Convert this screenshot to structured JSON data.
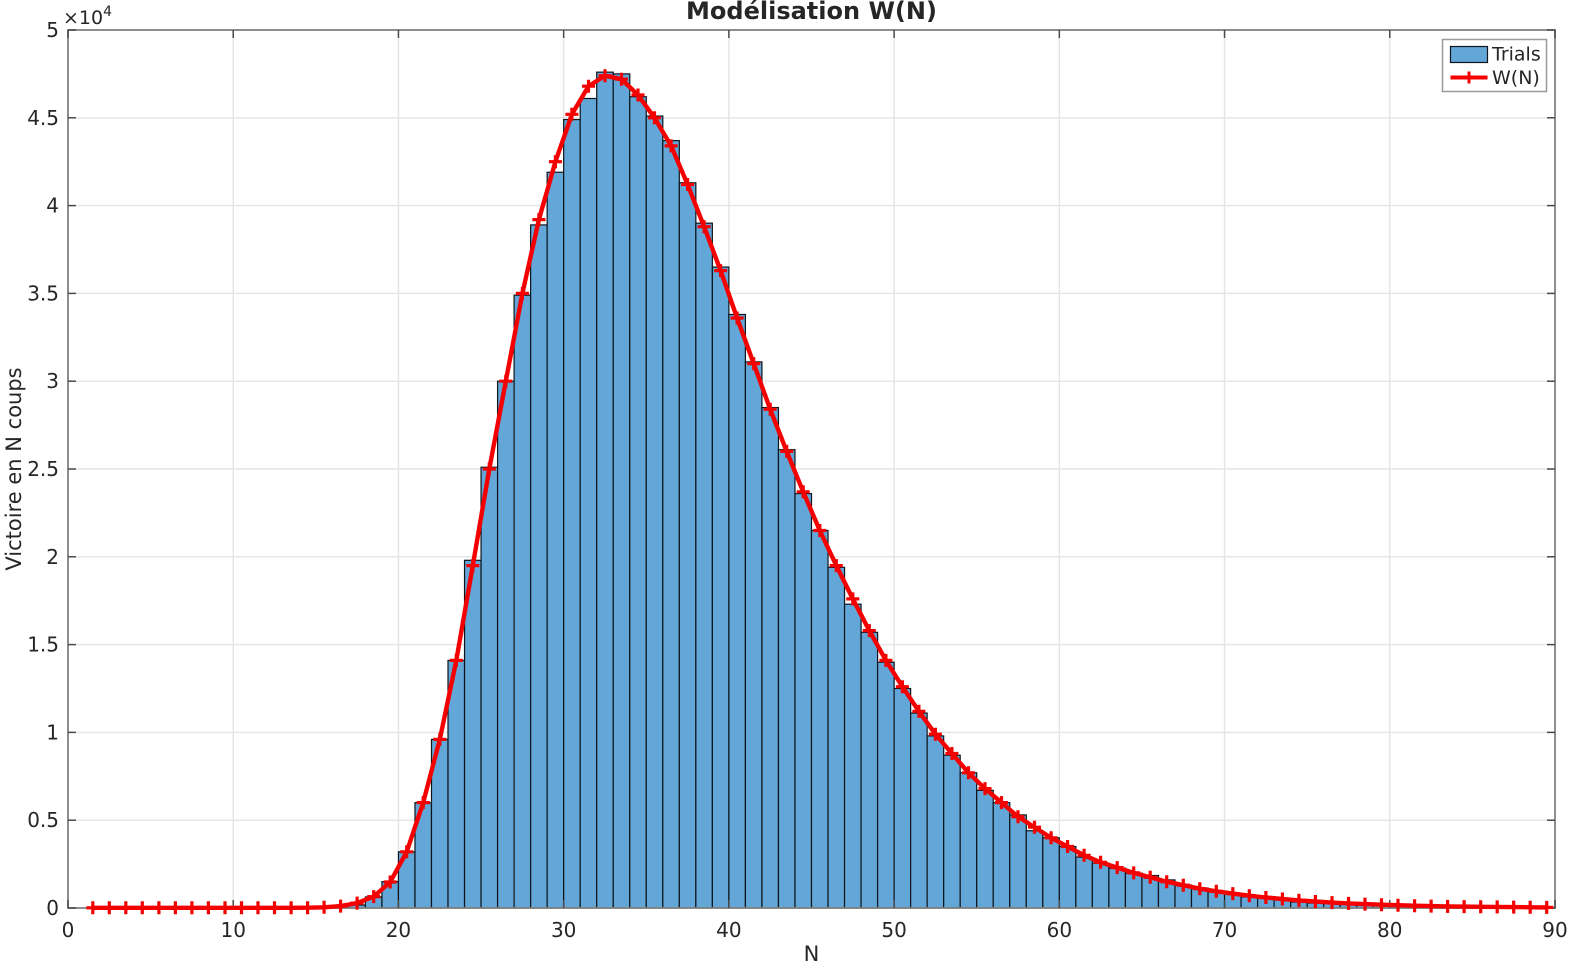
{
  "title": "Modélisation W(N)",
  "axes": {
    "xlabel": "N",
    "ylabel": "Victoire en N coups",
    "y_exponent": {
      "base": "×10",
      "power": "4"
    },
    "x_ticks": [
      0,
      10,
      20,
      30,
      40,
      50,
      60,
      70,
      80,
      90
    ],
    "y_tick_labels": [
      "0",
      "0.5",
      "1",
      "1.5",
      "2",
      "2.5",
      "3",
      "3.5",
      "4",
      "4.5",
      "5"
    ],
    "y_tick_values": [
      0,
      5000,
      10000,
      15000,
      20000,
      25000,
      30000,
      35000,
      40000,
      45000,
      50000
    ],
    "xlim": [
      0,
      90
    ],
    "ylim": [
      0,
      50000
    ]
  },
  "legend": {
    "items": [
      {
        "label": "Trials",
        "type": "bar-swatch"
      },
      {
        "label": "W(N)",
        "type": "line-marker"
      }
    ]
  },
  "colors": {
    "background": "#ffffff",
    "bar_fill": "#63A6D8",
    "bar_edge": "#0E141A",
    "line_red": "#F40000",
    "grid": "#E4E4E4",
    "axis_box": "#818181",
    "tick": "#4A4A4A",
    "text": "#262626",
    "legend_border": "#9A9A9A"
  },
  "chart_data": {
    "type": [
      "bar",
      "line"
    ],
    "title": "Modélisation W(N)",
    "xlabel": "N",
    "ylabel": "Victoire en N coups",
    "xlim": [
      0,
      90
    ],
    "ylim": [
      0,
      50000
    ],
    "grid": true,
    "legend_position": "top-right",
    "series": [
      {
        "name": "Trials",
        "type": "histogram-bar",
        "bin_width": 1,
        "first_bin_left_edge": 16,
        "counts": [
          30,
          170,
          630,
          1500,
          3200,
          6000,
          9600,
          14100,
          19800,
          25100,
          30000,
          34900,
          38900,
          41900,
          44900,
          46100,
          47600,
          47500,
          46200,
          45100,
          43700,
          41300,
          39000,
          36500,
          33800,
          31100,
          28500,
          26100,
          23600,
          21500,
          19400,
          17300,
          15700,
          14000,
          12500,
          11100,
          9800,
          8700,
          7700,
          6700,
          6000,
          5300,
          4400,
          4000,
          3500,
          2900,
          2560,
          2270,
          1990,
          1850,
          1600,
          1310,
          1140,
          910,
          800,
          630,
          570,
          460,
          340,
          280,
          280,
          220,
          190,
          150,
          130,
          110,
          90,
          80,
          70,
          60,
          50,
          40,
          40,
          30
        ]
      },
      {
        "name": "W(N)",
        "type": "line",
        "marker": "plus",
        "x_first": 1.5,
        "x_step": 1,
        "values": [
          10,
          10,
          10,
          10,
          10,
          10,
          10,
          10,
          10,
          10,
          10,
          10,
          10,
          15,
          40,
          110,
          280,
          650,
          1480,
          3200,
          6000,
          9600,
          14100,
          19500,
          25000,
          30000,
          35000,
          39200,
          42500,
          45200,
          46800,
          47400,
          47200,
          46300,
          45000,
          43400,
          41200,
          38800,
          36300,
          33600,
          31000,
          28400,
          26000,
          23700,
          21500,
          19500,
          17600,
          15800,
          14100,
          12600,
          11200,
          9900,
          8800,
          7700,
          6800,
          6000,
          5200,
          4600,
          4000,
          3500,
          3000,
          2600,
          2300,
          2000,
          1750,
          1500,
          1300,
          1100,
          950,
          820,
          700,
          600,
          510,
          430,
          370,
          310,
          260,
          220,
          190,
          160,
          130,
          110,
          90,
          80,
          70,
          60,
          50,
          40,
          35
        ]
      }
    ]
  }
}
